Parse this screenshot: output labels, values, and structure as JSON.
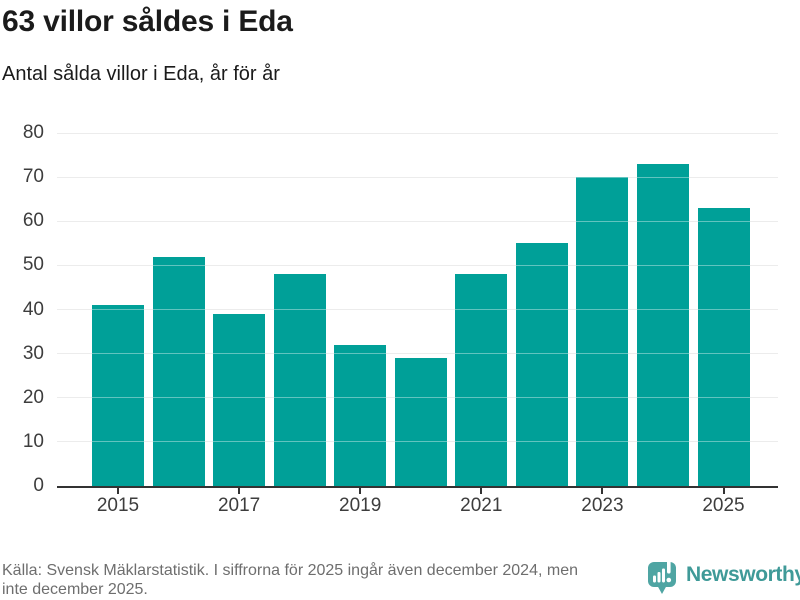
{
  "header": {
    "title": "63 villor såldes i Eda",
    "subtitle": "Antal sålda villor i Eda, år för år"
  },
  "chart_data": {
    "type": "bar",
    "title": "63 villor såldes i Eda",
    "subtitle": "Antal sålda villor i Eda, år för år",
    "categories": [
      "2015",
      "2016",
      "2017",
      "2018",
      "2019",
      "2020",
      "2021",
      "2022",
      "2023",
      "2024",
      "2025"
    ],
    "values": [
      41,
      52,
      39,
      48,
      32,
      29,
      48,
      55,
      70,
      73,
      63
    ],
    "series_name": "Antal sålda villor",
    "ylim": [
      0,
      80
    ],
    "y_ticks": [
      0,
      10,
      20,
      30,
      40,
      50,
      60,
      70,
      80
    ],
    "x_labeled_ticks": [
      "2015",
      "2017",
      "2019",
      "2021",
      "2023",
      "2025"
    ],
    "grid": true,
    "legend": false,
    "xlabel": "",
    "ylabel": ""
  },
  "footer": {
    "lines": [
      "Källa: Svensk Mäklarstatistik. I siffrorna för 2025 ingår även december 2024, men",
      "inte december 2025."
    ],
    "brand": {
      "name": "Newsworthy"
    }
  },
  "colors": {
    "bar": "#00A098",
    "grid": "#E0E0E0",
    "axis": "#333333",
    "axis_text": "#3D3D3D",
    "title_text": "#1B1B1B",
    "muted_text": "#6E6E6E",
    "brand_icon": "#4FA5A3",
    "brand_text": "#3F9A98",
    "background": "#FFFFFF"
  }
}
